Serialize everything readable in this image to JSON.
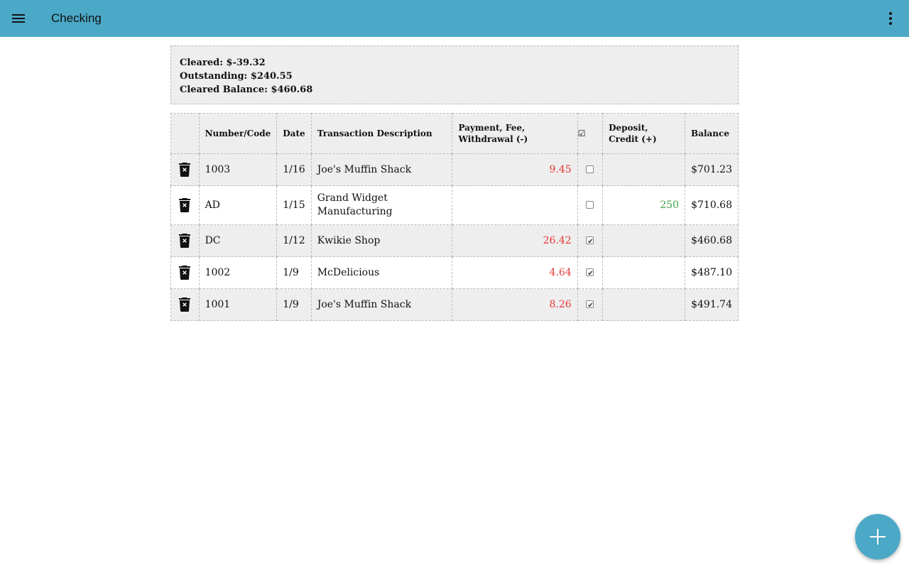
{
  "appbar": {
    "title": "Checking",
    "menu_icon": "hamburger-menu-icon",
    "more_icon": "more-vertical-icon",
    "color": "#4ba8c6"
  },
  "summary": {
    "cleared": "Cleared: $-39.32",
    "outstanding": "Outstanding: $240.55",
    "cleared_balance": "Cleared Balance: $460.68"
  },
  "table": {
    "headers": {
      "number": "Number/Code",
      "date": "Date",
      "description": "Transaction Description",
      "payment": "Payment, Fee, Withdrawal (-)",
      "cleared": "☑",
      "deposit": "Deposit, Credit (+)",
      "balance": "Balance"
    },
    "rows": [
      {
        "number": "1003",
        "date": "1/16",
        "description": "Joe's Muffin Shack",
        "payment": "9.45",
        "cleared": false,
        "deposit": "",
        "balance": "$701.23"
      },
      {
        "number": "AD",
        "date": "1/15",
        "description": "Grand Widget Manufacturing",
        "payment": "",
        "cleared": false,
        "deposit": "250",
        "balance": "$710.68"
      },
      {
        "number": "DC",
        "date": "1/12",
        "description": "Kwikie Shop",
        "payment": "26.42",
        "cleared": true,
        "deposit": "",
        "balance": "$460.68"
      },
      {
        "number": "1002",
        "date": "1/9",
        "description": "McDelicious",
        "payment": "4.64",
        "cleared": true,
        "deposit": "",
        "balance": "$487.10"
      },
      {
        "number": "1001",
        "date": "1/9",
        "description": "Joe's Muffin Shack",
        "payment": "8.26",
        "cleared": true,
        "deposit": "",
        "balance": "$491.74"
      }
    ],
    "colors": {
      "payment": "#e53935",
      "deposit": "#43a047"
    },
    "row_icon": "delete-forever-icon"
  },
  "fab": {
    "icon": "plus-icon"
  }
}
